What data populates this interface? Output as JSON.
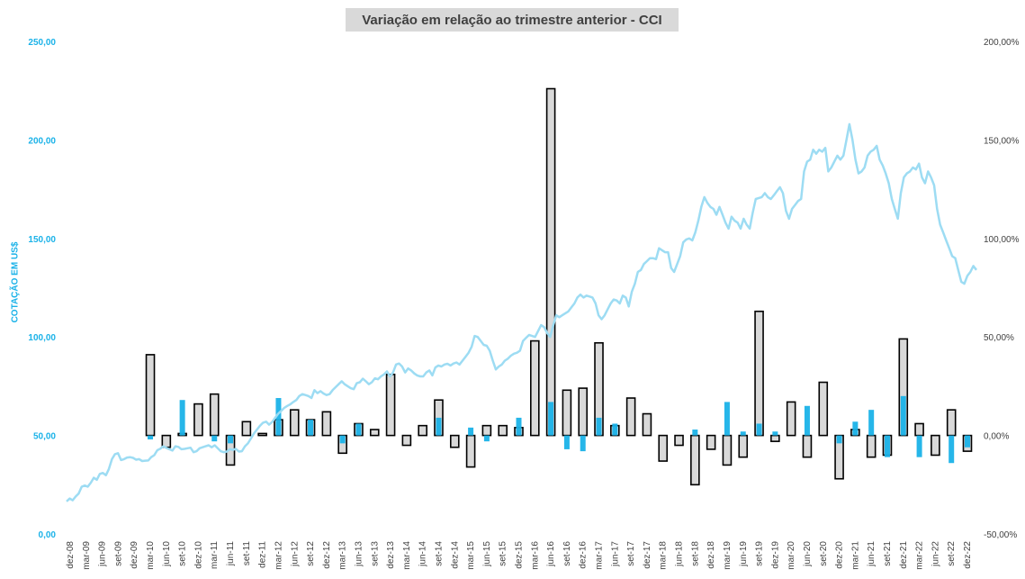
{
  "chart_data": {
    "type": "bar+line",
    "title": "Variação em relação ao trimestre anterior - CCI",
    "ylabel": "COTAÇÃO EM US$",
    "y_left_ticks": [
      "0,00",
      "50,00",
      "100,00",
      "150,00",
      "200,00",
      "250,00"
    ],
    "y_left_range": [
      0,
      250
    ],
    "y_right_ticks": [
      "-50,00%",
      "0,00%",
      "50,00%",
      "100,00%",
      "150,00%",
      "200,00%"
    ],
    "y_right_range": [
      -50,
      200
    ],
    "grid": false,
    "x_labels": [
      "dez-08",
      "mar-09",
      "jun-09",
      "set-09",
      "dez-09",
      "mar-10",
      "jun-10",
      "set-10",
      "dez-10",
      "mar-11",
      "jun-11",
      "set-11",
      "dez-11",
      "mar-12",
      "jun-12",
      "set-12",
      "dez-12",
      "mar-13",
      "jun-13",
      "set-13",
      "dez-13",
      "mar-14",
      "jun-14",
      "set-14",
      "dez-14",
      "mar-15",
      "jun-15",
      "set-15",
      "dez-15",
      "mar-16",
      "jun-16",
      "set-16",
      "dez-16",
      "mar-17",
      "jun-17",
      "set-17",
      "dez-17",
      "mar-18",
      "jun-18",
      "set-18",
      "dez-18",
      "mar-19",
      "jun-19",
      "set-19",
      "dez-19",
      "mar-20",
      "jun-20",
      "set-20",
      "dez-20",
      "mar-21",
      "jun-21",
      "set-21",
      "dez-21",
      "mar-22",
      "jun-22",
      "set-22",
      "dez-22"
    ],
    "price_series": {
      "name": "Cotação",
      "color": "#9ddcf3",
      "values": [
        16.5,
        18,
        17.1,
        19,
        20.5,
        24,
        24.6,
        24,
        26,
        28.5,
        27.5,
        30.5,
        31,
        29.8,
        33,
        38,
        40.5,
        41,
        37.5,
        38,
        38.8,
        39,
        38.6,
        37.7,
        38,
        37,
        37.2,
        37.3,
        39,
        40,
        42.5,
        43.3,
        44.5,
        43.7,
        43,
        42.3,
        44.5,
        44.2,
        43,
        43.2,
        43.5,
        43.8,
        41.5,
        42,
        43.5,
        44,
        44.5,
        45,
        44,
        45,
        43.5,
        42,
        41.5,
        41.8,
        43,
        42.7,
        43.2,
        41.8,
        42,
        44.5,
        46,
        48.5,
        51,
        53,
        55,
        56.5,
        57,
        55.5,
        56.8,
        59,
        61,
        62.5,
        64,
        65,
        65.8,
        67,
        68,
        70,
        71,
        70.5,
        70,
        69,
        73,
        71.5,
        72.5,
        71.3,
        70.5,
        71,
        73,
        74.5,
        76,
        77.5,
        76,
        75,
        74,
        73.5,
        76.5,
        77,
        78.8,
        77.5,
        76,
        77,
        79,
        78.5,
        80,
        81,
        82.5,
        80,
        82,
        86,
        86.5,
        85,
        82,
        84,
        83,
        81.5,
        80.5,
        80,
        80,
        82,
        83,
        80.5,
        84.5,
        85.5,
        85,
        86,
        86.4,
        85.5,
        86.5,
        87,
        86,
        88,
        90,
        92,
        95,
        100.5,
        100,
        98,
        96,
        95.5,
        93,
        88,
        83.5,
        85,
        86,
        88,
        89,
        90.5,
        91.5,
        92,
        93,
        98,
        99.5,
        101,
        100.5,
        100,
        103,
        106,
        105,
        102,
        100,
        106,
        111,
        110,
        111,
        112,
        113,
        115,
        117,
        120,
        121.5,
        120,
        121,
        120.5,
        120,
        117,
        111,
        109,
        111,
        114,
        117,
        119,
        118.5,
        117,
        121,
        120,
        115.5,
        123,
        127,
        133,
        134,
        137,
        138.5,
        140,
        140,
        139.5,
        145,
        144,
        143,
        143,
        135,
        133,
        137,
        141,
        148,
        149.5,
        150,
        149,
        153,
        159,
        166,
        171,
        168,
        166,
        165,
        162,
        166,
        162,
        158,
        155,
        161,
        159,
        158,
        155,
        160,
        157,
        155,
        163,
        170,
        170.5,
        171,
        173,
        171,
        170,
        172,
        174,
        176,
        173,
        164,
        160,
        165,
        167,
        169,
        170,
        184,
        189,
        190,
        195,
        193,
        195,
        194,
        196,
        184,
        186,
        189,
        192,
        190,
        192,
        200,
        208,
        200,
        190,
        183,
        184,
        186,
        192,
        194,
        195,
        197,
        190,
        187,
        183,
        178,
        170,
        165,
        160,
        173,
        181,
        183,
        184,
        186,
        185,
        188,
        181,
        178,
        184,
        181,
        177,
        165,
        157,
        153,
        149,
        145,
        141,
        140,
        134,
        128,
        127,
        131,
        133,
        136,
        134
      ]
    },
    "qoq_bars": {
      "name": "Variação trimestral",
      "unit": "%",
      "fill": "#d9d9d9",
      "stroke": "#000000",
      "values": [
        null,
        null,
        null,
        null,
        null,
        41,
        -6,
        1,
        16,
        21,
        -15,
        7,
        1,
        8,
        13,
        8,
        12,
        -9,
        6,
        3,
        31,
        -5,
        5,
        18,
        -6,
        -16,
        5,
        5,
        4,
        48,
        176,
        23,
        24,
        47,
        5,
        19,
        11,
        -13,
        -5,
        -25,
        -7,
        -15,
        -11,
        63,
        -3,
        17,
        -11,
        27,
        -22,
        3,
        -11,
        -10,
        49,
        6,
        -10,
        13,
        -8
      ]
    },
    "blue_bars": {
      "name": "",
      "fill": "#1ab2e8",
      "values": [
        null,
        null,
        null,
        null,
        null,
        -2,
        null,
        18,
        null,
        -3,
        -4,
        null,
        null,
        19,
        null,
        8,
        null,
        -4,
        6,
        null,
        null,
        null,
        null,
        9,
        null,
        4,
        -3,
        null,
        9,
        null,
        17,
        -7,
        -8,
        9,
        6,
        null,
        null,
        null,
        null,
        3,
        null,
        17,
        2,
        6,
        2,
        null,
        15,
        null,
        -4,
        7,
        13,
        -11,
        20,
        -11,
        null,
        -14,
        -6
      ]
    }
  }
}
